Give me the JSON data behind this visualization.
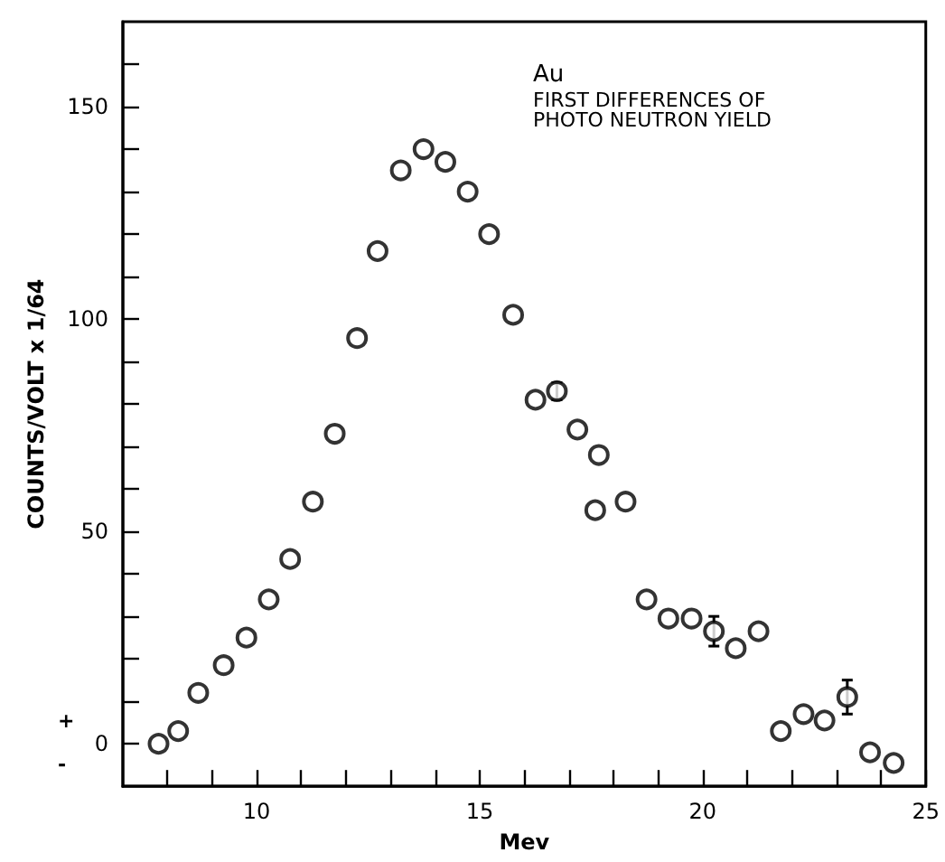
{
  "chart_data": {
    "type": "scatter",
    "title": "Au",
    "subtitle": "FIRST DIFFERENCES OF PHOTO NEUTRON YIELD",
    "xlabel": "Mev",
    "ylabel": "COUNTS/VOLT x 1/64",
    "annotations": [
      "+",
      "-"
    ],
    "x": [
      7.8,
      8.24,
      8.69,
      9.26,
      9.77,
      10.27,
      10.75,
      11.26,
      11.75,
      12.25,
      12.71,
      13.23,
      13.74,
      14.23,
      14.73,
      15.21,
      15.75,
      16.25,
      16.73,
      17.19,
      17.67,
      17.59,
      18.27,
      18.74,
      19.23,
      19.75,
      20.25,
      20.74,
      21.25,
      21.75,
      22.26,
      22.73,
      23.24,
      23.75,
      24.28
    ],
    "values": [
      0,
      3,
      12,
      18.5,
      25,
      34,
      43.5,
      57,
      73,
      95.5,
      116,
      135,
      140,
      137,
      130,
      120,
      101,
      81,
      83,
      74,
      68,
      55,
      57,
      34,
      29.5,
      29.5,
      26.5,
      22.5,
      26.5,
      3,
      7,
      5.5,
      11,
      -2,
      -4.5
    ],
    "errors": [
      null,
      null,
      null,
      null,
      null,
      null,
      null,
      null,
      null,
      null,
      null,
      null,
      null,
      null,
      null,
      null,
      null,
      null,
      2,
      null,
      null,
      null,
      null,
      null,
      null,
      null,
      3.5,
      null,
      null,
      null,
      null,
      null,
      4,
      null,
      null
    ],
    "color": "#000000",
    "marker": "circle",
    "xlim": [
      7,
      25
    ],
    "xticks": [
      {
        "value": 8,
        "label": null
      },
      {
        "value": 9,
        "label": null
      },
      10,
      {
        "value": 11,
        "label": null
      },
      {
        "value": 12,
        "label": null
      },
      {
        "value": 13,
        "label": null
      },
      {
        "value": 14,
        "label": null
      },
      15,
      {
        "value": 16,
        "label": null
      },
      {
        "value": 17,
        "label": null
      },
      {
        "value": 18,
        "label": null
      },
      {
        "value": 19,
        "label": null
      },
      20,
      {
        "value": 21,
        "label": null
      },
      {
        "value": 22,
        "label": null
      },
      {
        "value": 23,
        "label": null
      },
      {
        "value": 24,
        "label": null
      },
      25
    ],
    "ylim": [
      -10,
      170
    ],
    "yticks": [
      0,
      {
        "value": 10,
        "label": null
      },
      {
        "value": 20,
        "label": null
      },
      {
        "value": 30,
        "label": null
      },
      {
        "value": 40,
        "label": null
      },
      50,
      {
        "value": 60,
        "label": null
      },
      {
        "value": 70,
        "label": null
      },
      {
        "value": 80,
        "label": null
      },
      {
        "value": 90,
        "label": null
      },
      100,
      {
        "value": 110,
        "label": null
      },
      {
        "value": 120,
        "label": null
      },
      {
        "value": 130,
        "label": null
      },
      {
        "value": 140,
        "label": null
      },
      150,
      {
        "value": 160,
        "label": null
      }
    ],
    "grid": false
  }
}
